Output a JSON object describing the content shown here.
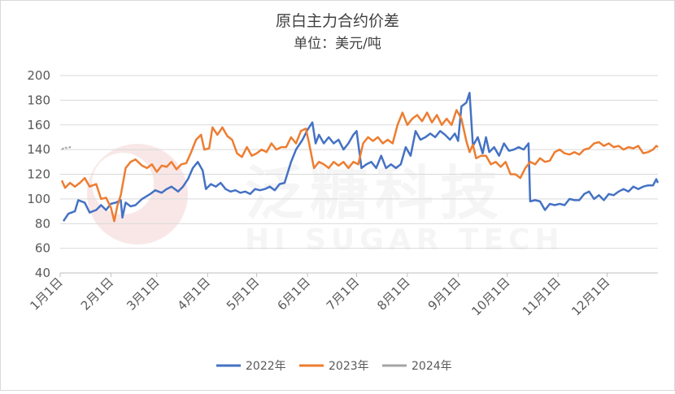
{
  "chart_data": {
    "type": "line",
    "title": "原白主力合约价差",
    "subtitle": "单位：美元/吨",
    "xlabel": "",
    "ylabel": "",
    "ylim": [
      40,
      200
    ],
    "yticks": [
      40,
      60,
      80,
      100,
      120,
      140,
      160,
      180,
      200
    ],
    "x_tick_labels": [
      "1月1日",
      "2月1日",
      "3月1日",
      "4月1日",
      "5月1日",
      "6月1日",
      "7月1日",
      "8月1日",
      "9月1日",
      "10月1日",
      "11月1日",
      "12月1日"
    ],
    "x_tick_days": [
      0,
      31,
      59,
      90,
      120,
      151,
      181,
      212,
      243,
      273,
      304,
      334
    ],
    "xlim_days": [
      0,
      365
    ],
    "legend_position": "bottom",
    "grid": "horizontal",
    "watermark": {
      "logo_text": "泛糖科技",
      "tagline": "HI SUGAR TECH"
    },
    "series": [
      {
        "name": "2022年",
        "color": "#4472C4",
        "points": [
          [
            2,
            82
          ],
          [
            5,
            88
          ],
          [
            9,
            90
          ],
          [
            11,
            99
          ],
          [
            15,
            97
          ],
          [
            18,
            89
          ],
          [
            22,
            91
          ],
          [
            25,
            95
          ],
          [
            28,
            91
          ],
          [
            31,
            96
          ],
          [
            34,
            97
          ],
          [
            37,
            99
          ],
          [
            38,
            85
          ],
          [
            40,
            97
          ],
          [
            43,
            94
          ],
          [
            46,
            95
          ],
          [
            50,
            100
          ],
          [
            55,
            104
          ],
          [
            58,
            107
          ],
          [
            62,
            105
          ],
          [
            65,
            108
          ],
          [
            68,
            110
          ],
          [
            72,
            106
          ],
          [
            75,
            110
          ],
          [
            78,
            116
          ],
          [
            81,
            125
          ],
          [
            84,
            130
          ],
          [
            87,
            123
          ],
          [
            89,
            108
          ],
          [
            92,
            112
          ],
          [
            95,
            110
          ],
          [
            98,
            113
          ],
          [
            101,
            108
          ],
          [
            104,
            106
          ],
          [
            107,
            107
          ],
          [
            110,
            105
          ],
          [
            113,
            106
          ],
          [
            116,
            104
          ],
          [
            119,
            108
          ],
          [
            122,
            107
          ],
          [
            125,
            108
          ],
          [
            128,
            110
          ],
          [
            131,
            107
          ],
          [
            134,
            112
          ],
          [
            137,
            113
          ],
          [
            141,
            130
          ],
          [
            144,
            140
          ],
          [
            148,
            148
          ],
          [
            151,
            156
          ],
          [
            154,
            162
          ],
          [
            156,
            145
          ],
          [
            158,
            152
          ],
          [
            161,
            145
          ],
          [
            164,
            150
          ],
          [
            167,
            145
          ],
          [
            170,
            148
          ],
          [
            173,
            140
          ],
          [
            176,
            145
          ],
          [
            179,
            152
          ],
          [
            181,
            155
          ],
          [
            184,
            125
          ],
          [
            187,
            128
          ],
          [
            190,
            130
          ],
          [
            193,
            125
          ],
          [
            196,
            135
          ],
          [
            199,
            125
          ],
          [
            202,
            128
          ],
          [
            205,
            125
          ],
          [
            208,
            128
          ],
          [
            211,
            142
          ],
          [
            214,
            135
          ],
          [
            217,
            155
          ],
          [
            220,
            148
          ],
          [
            223,
            150
          ],
          [
            226,
            153
          ],
          [
            229,
            150
          ],
          [
            232,
            155
          ],
          [
            235,
            152
          ],
          [
            238,
            148
          ],
          [
            241,
            153
          ],
          [
            243,
            147
          ],
          [
            245,
            175
          ],
          [
            248,
            178
          ],
          [
            250,
            186
          ],
          [
            252,
            143
          ],
          [
            255,
            150
          ],
          [
            258,
            137
          ],
          [
            260,
            150
          ],
          [
            262,
            138
          ],
          [
            265,
            142
          ],
          [
            268,
            135
          ],
          [
            271,
            145
          ],
          [
            274,
            139
          ],
          [
            277,
            140
          ],
          [
            280,
            142
          ],
          [
            283,
            140
          ],
          [
            286,
            145
          ],
          [
            287,
            98
          ],
          [
            290,
            99
          ],
          [
            293,
            98
          ],
          [
            296,
            91
          ],
          [
            299,
            96
          ],
          [
            302,
            95
          ],
          [
            305,
            96
          ],
          [
            308,
            95
          ],
          [
            311,
            100
          ],
          [
            314,
            99
          ],
          [
            317,
            99
          ],
          [
            320,
            104
          ],
          [
            323,
            106
          ],
          [
            326,
            100
          ],
          [
            329,
            103
          ],
          [
            332,
            99
          ],
          [
            335,
            104
          ],
          [
            338,
            103
          ],
          [
            341,
            106
          ],
          [
            344,
            108
          ],
          [
            347,
            106
          ],
          [
            350,
            110
          ],
          [
            353,
            108
          ],
          [
            356,
            110
          ],
          [
            359,
            111
          ],
          [
            362,
            111
          ],
          [
            364,
            116
          ],
          [
            365,
            113
          ]
        ]
      },
      {
        "name": "2023年",
        "color": "#ED7D31",
        "points": [
          [
            1,
            115
          ],
          [
            3,
            109
          ],
          [
            6,
            113
          ],
          [
            9,
            110
          ],
          [
            12,
            113
          ],
          [
            15,
            117
          ],
          [
            18,
            110
          ],
          [
            22,
            112
          ],
          [
            25,
            100
          ],
          [
            28,
            101
          ],
          [
            31,
            93
          ],
          [
            33,
            82
          ],
          [
            35,
            95
          ],
          [
            37,
            103
          ],
          [
            40,
            125
          ],
          [
            43,
            130
          ],
          [
            46,
            132
          ],
          [
            50,
            127
          ],
          [
            53,
            125
          ],
          [
            56,
            128
          ],
          [
            59,
            122
          ],
          [
            62,
            127
          ],
          [
            65,
            126
          ],
          [
            68,
            130
          ],
          [
            71,
            124
          ],
          [
            74,
            128
          ],
          [
            77,
            129
          ],
          [
            80,
            138
          ],
          [
            83,
            148
          ],
          [
            86,
            152
          ],
          [
            88,
            140
          ],
          [
            91,
            141
          ],
          [
            93,
            158
          ],
          [
            96,
            152
          ],
          [
            99,
            158
          ],
          [
            102,
            151
          ],
          [
            105,
            148
          ],
          [
            108,
            137
          ],
          [
            111,
            134
          ],
          [
            114,
            142
          ],
          [
            117,
            135
          ],
          [
            120,
            137
          ],
          [
            123,
            140
          ],
          [
            126,
            138
          ],
          [
            129,
            145
          ],
          [
            132,
            140
          ],
          [
            135,
            142
          ],
          [
            138,
            142
          ],
          [
            141,
            150
          ],
          [
            144,
            145
          ],
          [
            147,
            155
          ],
          [
            150,
            157
          ],
          [
            152,
            145
          ],
          [
            155,
            125
          ],
          [
            158,
            130
          ],
          [
            161,
            128
          ],
          [
            164,
            125
          ],
          [
            167,
            130
          ],
          [
            170,
            127
          ],
          [
            173,
            130
          ],
          [
            176,
            125
          ],
          [
            179,
            130
          ],
          [
            182,
            128
          ],
          [
            185,
            145
          ],
          [
            188,
            150
          ],
          [
            191,
            147
          ],
          [
            194,
            150
          ],
          [
            197,
            145
          ],
          [
            200,
            148
          ],
          [
            203,
            145
          ],
          [
            206,
            160
          ],
          [
            209,
            170
          ],
          [
            212,
            160
          ],
          [
            215,
            165
          ],
          [
            218,
            168
          ],
          [
            221,
            163
          ],
          [
            224,
            170
          ],
          [
            227,
            162
          ],
          [
            230,
            168
          ],
          [
            233,
            160
          ],
          [
            236,
            165
          ],
          [
            239,
            160
          ],
          [
            242,
            172
          ],
          [
            245,
            165
          ],
          [
            248,
            147
          ],
          [
            250,
            138
          ],
          [
            252,
            144
          ],
          [
            254,
            133
          ],
          [
            257,
            135
          ],
          [
            260,
            135
          ],
          [
            263,
            128
          ],
          [
            266,
            130
          ],
          [
            269,
            126
          ],
          [
            272,
            130
          ],
          [
            275,
            120
          ],
          [
            278,
            120
          ],
          [
            281,
            117
          ],
          [
            284,
            125
          ],
          [
            287,
            130
          ],
          [
            290,
            128
          ],
          [
            293,
            133
          ],
          [
            296,
            130
          ],
          [
            299,
            131
          ],
          [
            302,
            138
          ],
          [
            305,
            140
          ],
          [
            308,
            137
          ],
          [
            311,
            136
          ],
          [
            314,
            138
          ],
          [
            317,
            136
          ],
          [
            320,
            140
          ],
          [
            323,
            141
          ],
          [
            326,
            145
          ],
          [
            329,
            146
          ],
          [
            332,
            143
          ],
          [
            335,
            145
          ],
          [
            338,
            142
          ],
          [
            341,
            143
          ],
          [
            344,
            140
          ],
          [
            347,
            142
          ],
          [
            350,
            141
          ],
          [
            353,
            143
          ],
          [
            356,
            137
          ],
          [
            359,
            138
          ],
          [
            362,
            140
          ],
          [
            364,
            143
          ],
          [
            365,
            142
          ]
        ]
      },
      {
        "name": "2024年",
        "color": "#A5A5A5",
        "points": [
          [
            1,
            140
          ],
          [
            3,
            142
          ],
          [
            4,
            141
          ],
          [
            6,
            142
          ],
          [
            7,
            141
          ]
        ]
      }
    ]
  }
}
